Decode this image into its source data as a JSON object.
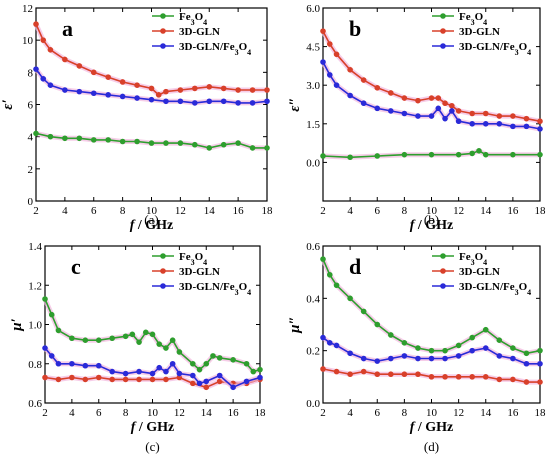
{
  "colors": {
    "fe3o4": "#2e9e2e",
    "gln": "#d8402a",
    "glnfe": "#2a2ad8",
    "band": "#f2b8de"
  },
  "chart_data": [
    {
      "id": "a",
      "type": "line",
      "panel_label": "a",
      "caption": "(a)",
      "ylabel": "ε′",
      "xlabel_main": "f",
      "xlabel_unit": " / GHz",
      "xlim": [
        2,
        18
      ],
      "ylim": [
        0,
        12
      ],
      "xticks": [
        2,
        4,
        6,
        8,
        10,
        12,
        14,
        16,
        18
      ],
      "yticks": [
        0,
        2,
        4,
        6,
        8,
        10,
        12
      ],
      "legend_position": "top-right",
      "series": [
        {
          "name_main": "Fe",
          "name_sub": "3",
          "name_post": "O",
          "name_sub2": "4",
          "color_key": "fe3o4",
          "x": [
            2,
            3,
            4,
            5,
            6,
            7,
            8,
            9,
            10,
            11,
            12,
            13,
            14,
            15,
            16,
            17,
            18
          ],
          "y": [
            4.2,
            4.0,
            3.9,
            3.9,
            3.8,
            3.8,
            3.7,
            3.7,
            3.6,
            3.6,
            3.6,
            3.5,
            3.3,
            3.5,
            3.6,
            3.3,
            3.3
          ]
        },
        {
          "name_main": "3D-GLN",
          "color_key": "gln",
          "x": [
            2,
            2.5,
            3,
            4,
            5,
            6,
            7,
            8,
            9,
            10,
            10.5,
            11,
            12,
            13,
            14,
            15,
            16,
            17,
            18
          ],
          "y": [
            11.0,
            10.0,
            9.4,
            8.8,
            8.4,
            8.0,
            7.7,
            7.4,
            7.2,
            7.0,
            6.6,
            6.8,
            6.9,
            7.0,
            7.1,
            7.0,
            6.9,
            6.9,
            6.9
          ]
        },
        {
          "name_main": "3D-GLN/Fe",
          "name_sub": "3",
          "name_post": "O",
          "name_sub2": "4",
          "color_key": "glnfe",
          "x": [
            2,
            2.5,
            3,
            4,
            5,
            6,
            7,
            8,
            9,
            10,
            11,
            12,
            13,
            14,
            15,
            16,
            17,
            18
          ],
          "y": [
            8.2,
            7.6,
            7.2,
            6.9,
            6.8,
            6.7,
            6.6,
            6.5,
            6.4,
            6.3,
            6.2,
            6.2,
            6.1,
            6.2,
            6.2,
            6.1,
            6.1,
            6.2
          ]
        }
      ]
    },
    {
      "id": "b",
      "type": "line",
      "panel_label": "b",
      "caption": "(b)",
      "ylabel": "ε″",
      "xlabel_main": "f",
      "xlabel_unit": " / GHz",
      "xlim": [
        2,
        18
      ],
      "ylim": [
        -1.5,
        6.0
      ],
      "xticks": [
        2,
        4,
        6,
        8,
        10,
        12,
        14,
        16,
        18
      ],
      "yticks": [
        0.0,
        1.5,
        3.0,
        4.5,
        6.0
      ],
      "ytick_labels": [
        "0.0",
        "1.5",
        "3.0",
        "4.5",
        "6.0"
      ],
      "legend_position": "top-right",
      "series": [
        {
          "name_main": "Fe",
          "name_sub": "3",
          "name_post": "O",
          "name_sub2": "4",
          "color_key": "fe3o4",
          "x": [
            2,
            4,
            6,
            8,
            10,
            12,
            13,
            13.5,
            14,
            16,
            18
          ],
          "y": [
            0.25,
            0.2,
            0.25,
            0.3,
            0.3,
            0.3,
            0.35,
            0.45,
            0.3,
            0.3,
            0.3
          ]
        },
        {
          "name_main": "3D-GLN",
          "color_key": "gln",
          "x": [
            2,
            2.5,
            3,
            4,
            5,
            6,
            7,
            8,
            9,
            10,
            10.5,
            11,
            11.5,
            12,
            13,
            14,
            15,
            16,
            17,
            18
          ],
          "y": [
            5.1,
            4.6,
            4.2,
            3.6,
            3.2,
            2.9,
            2.7,
            2.5,
            2.4,
            2.5,
            2.5,
            2.3,
            2.2,
            2.0,
            1.9,
            1.9,
            1.8,
            1.8,
            1.7,
            1.6
          ]
        },
        {
          "name_main": "3D-GLN/Fe",
          "name_sub": "3",
          "name_post": "O",
          "name_sub2": "4",
          "color_key": "glnfe",
          "x": [
            2,
            2.5,
            3,
            4,
            5,
            6,
            7,
            8,
            9,
            10,
            10.5,
            11,
            11.5,
            12,
            13,
            14,
            15,
            16,
            17,
            18
          ],
          "y": [
            3.9,
            3.4,
            3.0,
            2.6,
            2.3,
            2.1,
            2.0,
            1.9,
            1.8,
            1.8,
            2.1,
            1.7,
            2.0,
            1.6,
            1.5,
            1.5,
            1.5,
            1.4,
            1.4,
            1.3
          ]
        }
      ]
    },
    {
      "id": "c",
      "type": "line",
      "panel_label": "c",
      "caption": "(c)",
      "ylabel": "μ′",
      "xlabel_main": "f",
      "xlabel_unit": " / GHz",
      "xlim": [
        2,
        18
      ],
      "ylim": [
        0.6,
        1.4
      ],
      "xticks": [
        2,
        4,
        6,
        8,
        10,
        12,
        14,
        16,
        18
      ],
      "yticks": [
        0.6,
        0.8,
        1.0,
        1.2,
        1.4
      ],
      "ytick_labels": [
        "0.6",
        "0.8",
        "1.0",
        "1.2",
        "1.4"
      ],
      "legend_position": "top-right",
      "series": [
        {
          "name_main": "Fe",
          "name_sub": "3",
          "name_post": "O",
          "name_sub2": "4",
          "color_key": "fe3o4",
          "x": [
            2,
            2.5,
            3,
            4,
            5,
            6,
            7,
            8,
            8.5,
            9,
            9.5,
            10,
            10.5,
            11,
            11.5,
            12,
            13,
            13.5,
            14,
            14.5,
            15,
            16,
            17,
            17.5,
            18
          ],
          "y": [
            1.13,
            1.05,
            0.97,
            0.93,
            0.92,
            0.92,
            0.93,
            0.94,
            0.95,
            0.91,
            0.96,
            0.95,
            0.9,
            0.88,
            0.92,
            0.86,
            0.8,
            0.77,
            0.8,
            0.84,
            0.83,
            0.82,
            0.8,
            0.76,
            0.77
          ]
        },
        {
          "name_main": "3D-GLN",
          "color_key": "gln",
          "x": [
            2,
            3,
            4,
            5,
            6,
            7,
            8,
            9,
            10,
            11,
            12,
            13,
            14,
            15,
            16,
            17,
            18
          ],
          "y": [
            0.73,
            0.72,
            0.73,
            0.72,
            0.73,
            0.72,
            0.72,
            0.72,
            0.72,
            0.72,
            0.73,
            0.7,
            0.68,
            0.71,
            0.7,
            0.7,
            0.72
          ]
        },
        {
          "name_main": "3D-GLN/Fe",
          "name_sub": "3",
          "name_post": "O",
          "name_sub2": "4",
          "color_key": "glnfe",
          "x": [
            2,
            2.5,
            3,
            4,
            5,
            6,
            7,
            8,
            9,
            10,
            10.5,
            11,
            11.5,
            12,
            13,
            13.5,
            14,
            15,
            16,
            17,
            18
          ],
          "y": [
            0.88,
            0.84,
            0.8,
            0.8,
            0.79,
            0.79,
            0.76,
            0.75,
            0.76,
            0.75,
            0.78,
            0.76,
            0.8,
            0.75,
            0.74,
            0.7,
            0.71,
            0.74,
            0.68,
            0.71,
            0.73
          ]
        }
      ]
    },
    {
      "id": "d",
      "type": "line",
      "panel_label": "d",
      "caption": "(d)",
      "ylabel": "μ″",
      "xlabel_main": "f",
      "xlabel_unit": " / GHz",
      "xlim": [
        2,
        18
      ],
      "ylim": [
        0.0,
        0.6
      ],
      "xticks": [
        2,
        4,
        6,
        8,
        10,
        12,
        14,
        16,
        18
      ],
      "yticks": [
        0.0,
        0.2,
        0.4,
        0.6
      ],
      "ytick_labels": [
        "0.0",
        "0.2",
        "0.4",
        "0.6"
      ],
      "legend_position": "top-right",
      "series": [
        {
          "name_main": "Fe",
          "name_sub": "3",
          "name_post": "O",
          "name_sub2": "4",
          "color_key": "fe3o4",
          "x": [
            2,
            2.5,
            3,
            4,
            5,
            6,
            7,
            8,
            9,
            10,
            11,
            12,
            13,
            14,
            15,
            16,
            17,
            18
          ],
          "y": [
            0.55,
            0.49,
            0.45,
            0.4,
            0.35,
            0.3,
            0.26,
            0.23,
            0.21,
            0.2,
            0.2,
            0.22,
            0.25,
            0.28,
            0.24,
            0.21,
            0.19,
            0.2
          ]
        },
        {
          "name_main": "3D-GLN",
          "color_key": "gln",
          "x": [
            2,
            3,
            4,
            5,
            6,
            7,
            8,
            9,
            10,
            11,
            12,
            13,
            14,
            15,
            16,
            17,
            18
          ],
          "y": [
            0.13,
            0.12,
            0.11,
            0.12,
            0.11,
            0.11,
            0.11,
            0.11,
            0.1,
            0.1,
            0.1,
            0.1,
            0.1,
            0.09,
            0.09,
            0.08,
            0.08
          ]
        },
        {
          "name_main": "3D-GLN/Fe",
          "name_sub": "3",
          "name_post": "O",
          "name_sub2": "4",
          "color_key": "glnfe",
          "x": [
            2,
            2.5,
            3,
            4,
            5,
            6,
            7,
            8,
            9,
            10,
            11,
            12,
            13,
            14,
            15,
            16,
            17,
            18
          ],
          "y": [
            0.25,
            0.23,
            0.22,
            0.19,
            0.17,
            0.16,
            0.17,
            0.18,
            0.17,
            0.17,
            0.17,
            0.18,
            0.2,
            0.21,
            0.18,
            0.17,
            0.15,
            0.15
          ]
        }
      ]
    }
  ]
}
